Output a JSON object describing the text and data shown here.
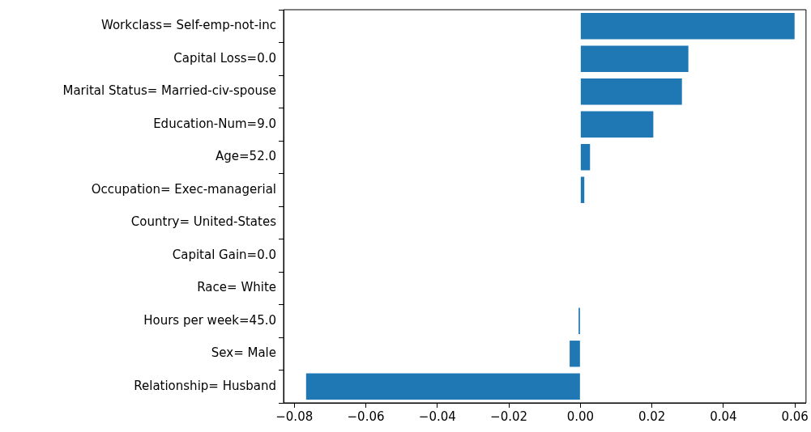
{
  "chart_data": {
    "type": "bar",
    "orientation": "horizontal",
    "categories": [
      "Workclass= Self-emp-not-inc",
      "Capital Loss=0.0",
      "Marital Status= Married-civ-spouse",
      "Education-Num=9.0",
      "Age=52.0",
      "Occupation= Exec-managerial",
      "Country= United-States",
      "Capital Gain=0.0",
      "Race= White",
      "Hours per week=45.0",
      "Sex= Male",
      "Relationship= Husband"
    ],
    "values": [
      0.0599,
      0.0302,
      0.0284,
      0.0204,
      0.0027,
      0.0011,
      0,
      0,
      0,
      -0.0005,
      -0.003,
      -0.0767
    ],
    "color": "#1f77b4",
    "xlim": [
      -0.083,
      0.0631
    ],
    "xticks": [
      {
        "value": -0.08,
        "label": "−0.08"
      },
      {
        "value": -0.06,
        "label": "−0.06"
      },
      {
        "value": -0.04,
        "label": "−0.04"
      },
      {
        "value": -0.02,
        "label": "−0.02"
      },
      {
        "value": 0,
        "label": "0.00"
      },
      {
        "value": 0.02,
        "label": "0.02"
      },
      {
        "value": 0.04,
        "label": "0.04"
      },
      {
        "value": 0.06,
        "label": "0.06"
      }
    ],
    "grid": false,
    "legend": false
  }
}
